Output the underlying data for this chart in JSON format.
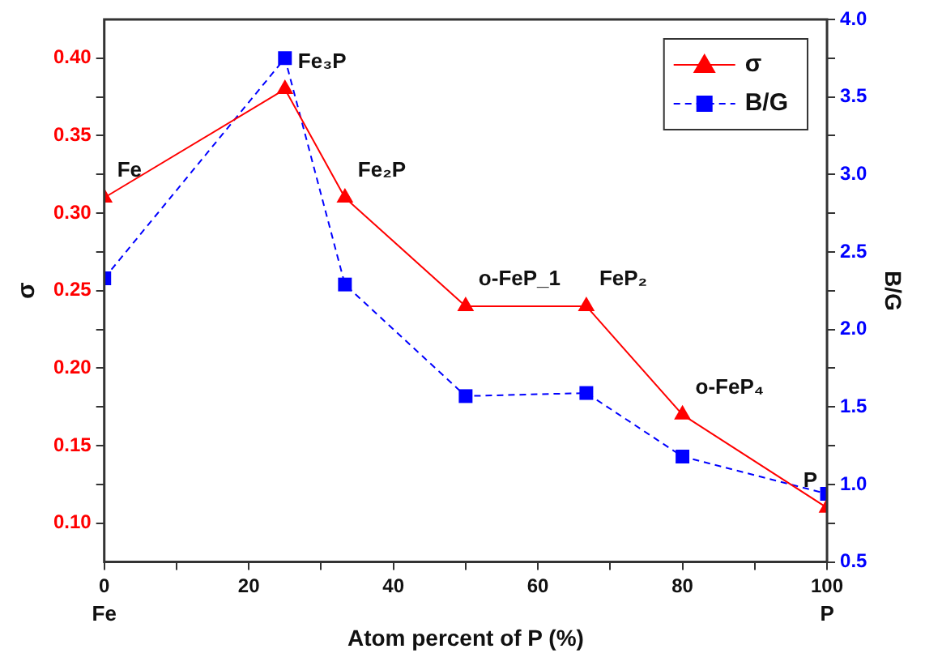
{
  "chart_data": {
    "type": "line",
    "xlabel": "Atom percent of P (%)",
    "ylabel": "σ",
    "y2label": "B/G",
    "x": [
      0,
      25,
      33.3,
      50,
      66.7,
      80,
      100
    ],
    "series": [
      {
        "name": "σ",
        "color": "#ff0000",
        "marker": "triangle",
        "line_style": "solid",
        "values": [
          0.31,
          0.38,
          0.31,
          0.24,
          0.24,
          0.17,
          0.11
        ]
      },
      {
        "name": "B/G",
        "color": "#0000ff",
        "marker": "square",
        "line_style": "dashed",
        "axis": "y2",
        "values": [
          2.33,
          3.75,
          2.29,
          1.57,
          1.59,
          1.18,
          0.94
        ]
      }
    ],
    "xlim": [
      0,
      100
    ],
    "xticks": [
      0,
      {
        "value": 10,
        "label": null
      },
      20,
      {
        "value": 30,
        "label": null
      },
      40,
      {
        "value": 50,
        "label": null
      },
      60,
      {
        "value": 70,
        "label": null
      },
      80,
      {
        "value": 90,
        "label": null
      },
      100
    ],
    "ylim": [
      0.075,
      0.425
    ],
    "yticks": [
      {
        "value": 0.1,
        "label": "0.10"
      },
      {
        "value": 0.125,
        "label": null
      },
      {
        "value": 0.15,
        "label": "0.15"
      },
      {
        "value": 0.175,
        "label": null
      },
      {
        "value": 0.2,
        "label": "0.20"
      },
      {
        "value": 0.225,
        "label": null
      },
      {
        "value": 0.25,
        "label": "0.25"
      },
      {
        "value": 0.275,
        "label": null
      },
      {
        "value": 0.3,
        "label": "0.30"
      },
      {
        "value": 0.325,
        "label": null
      },
      {
        "value": 0.35,
        "label": "0.35"
      },
      {
        "value": 0.375,
        "label": null
      },
      {
        "value": 0.4,
        "label": "0.40"
      }
    ],
    "y2lim": [
      0.5,
      4.0
    ],
    "y2ticks": [
      {
        "value": 0.5,
        "label": "0.5"
      },
      {
        "value": 0.75,
        "label": null
      },
      {
        "value": 1,
        "label": "1.0"
      },
      {
        "value": 1.25,
        "label": null
      },
      {
        "value": 1.5,
        "label": "1.5"
      },
      {
        "value": 1.75,
        "label": null
      },
      {
        "value": 2,
        "label": "2.0"
      },
      {
        "value": 2.25,
        "label": null
      },
      {
        "value": 2.5,
        "label": "2.5"
      },
      {
        "value": 2.75,
        "label": null
      },
      {
        "value": 3,
        "label": "3.0"
      },
      {
        "value": 3.25,
        "label": null
      },
      {
        "value": 3.5,
        "label": "3.5"
      },
      {
        "value": 3.75,
        "label": null
      },
      {
        "value": 4,
        "label": "4.0"
      }
    ],
    "annotations": [
      {
        "text": "Fe",
        "x": 0,
        "y": 0.31
      },
      {
        "text": "Fe₃P",
        "x": 25,
        "y": 0.38
      },
      {
        "text": "Fe₂P",
        "x": 33.3,
        "y": 0.31
      },
      {
        "text": "o-FeP_1",
        "x": 50,
        "y": 0.24
      },
      {
        "text": "FeP₂",
        "x": 66.7,
        "y": 0.24
      },
      {
        "text": "o-FeP₄",
        "x": 80,
        "y": 0.17
      },
      {
        "text": "P",
        "x": 100,
        "y": 0.11
      },
      "Fe",
      "P"
    ],
    "grid": false,
    "legend": "top right"
  }
}
